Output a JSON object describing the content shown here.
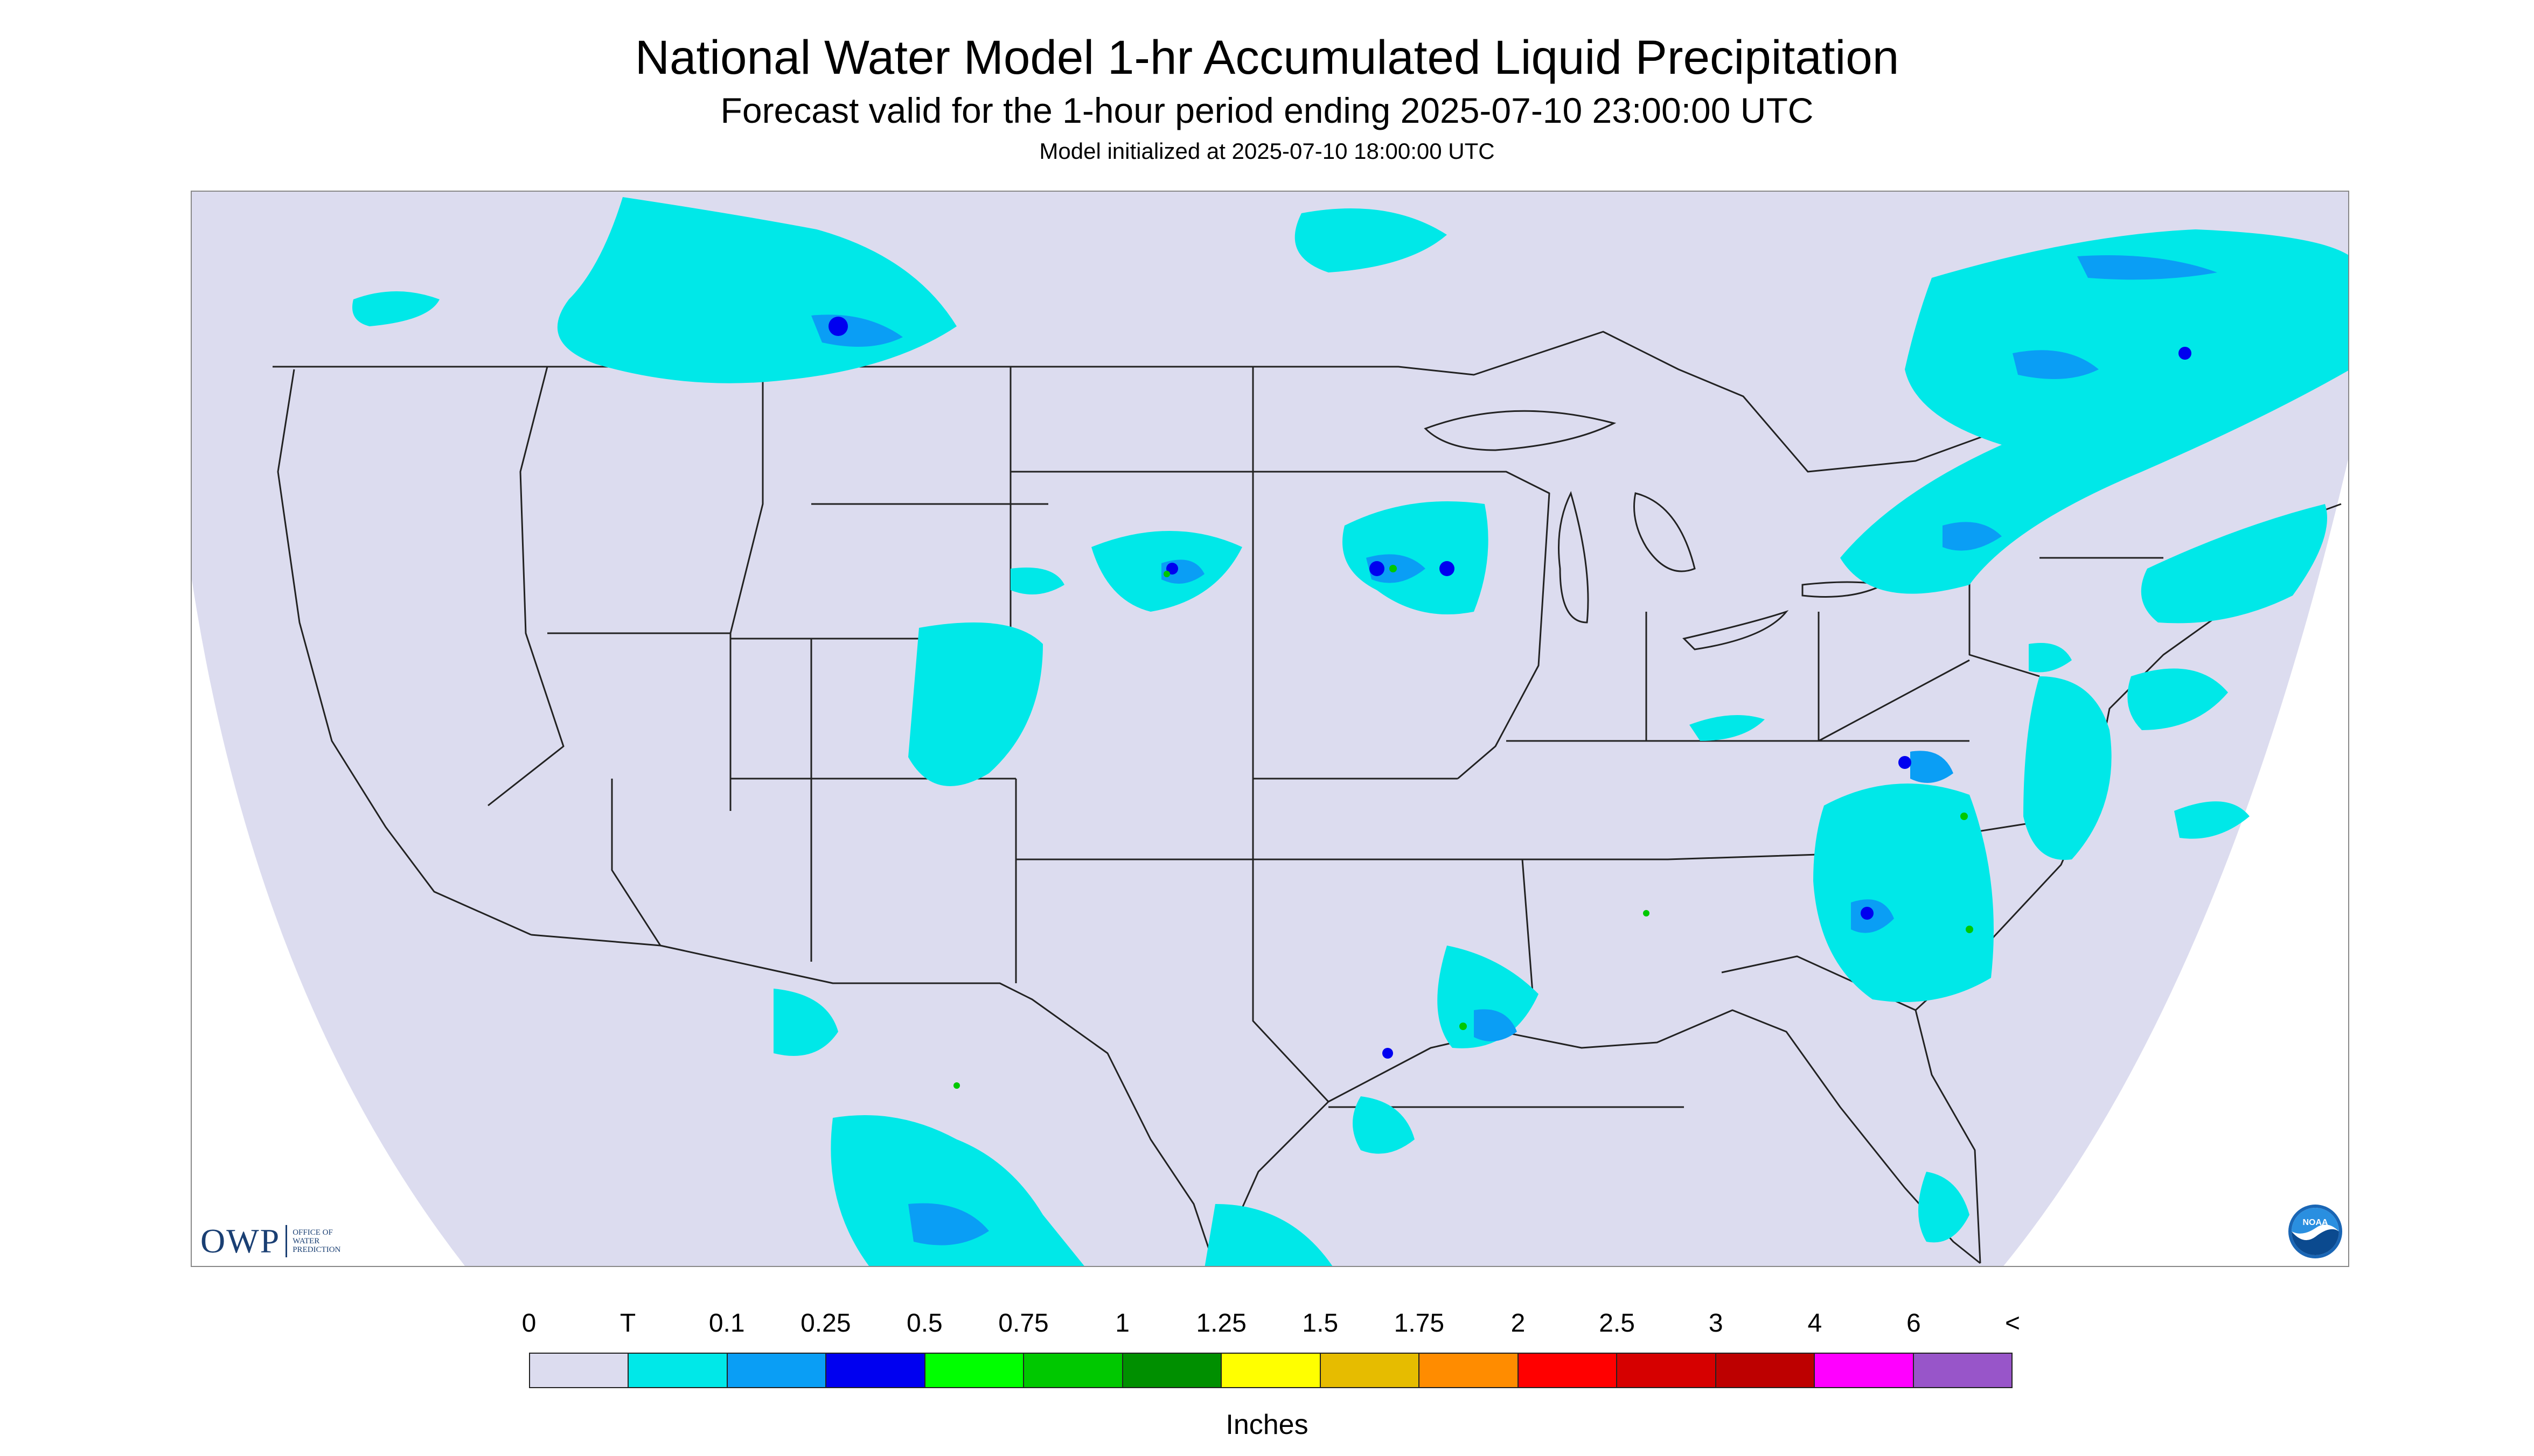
{
  "header": {
    "title": "National Water Model 1-hr Accumulated Liquid Precipitation",
    "subtitle": "Forecast valid for the 1-hour period ending 2025-07-10 23:00:00 UTC",
    "init_line": "Model initialized at 2025-07-10 18:00:00 UTC"
  },
  "logos": {
    "owp_text": "OWP",
    "owp_small": [
      "OFFICE OF",
      "WATER",
      "PREDICTION"
    ],
    "noaa_text": "NOAA"
  },
  "legend": {
    "labels": [
      "0",
      "T",
      "0.1",
      "0.25",
      "0.5",
      "0.75",
      "1",
      "1.25",
      "1.5",
      "1.75",
      "2",
      "2.5",
      "3",
      "4",
      "6",
      "<"
    ],
    "colors": [
      "#dcdcef",
      "#00e8e8",
      "#0a9ef5",
      "#0000f0",
      "#00ff00",
      "#00c800",
      "#008f00",
      "#ffff00",
      "#e6bc00",
      "#ff8c00",
      "#ff0000",
      "#d60000",
      "#bd0000",
      "#ff00ff",
      "#9855c9"
    ],
    "units": "Inches"
  },
  "map": {
    "background_color": "#dcdcef",
    "outside_color": "#ffffff",
    "boundary_color": "#222222",
    "precip_light_color": "#00e8e8",
    "precip_mid_color": "#0a9ef5",
    "precip_heavy_color": "#0000f0",
    "precip_peak_color": "#00c800"
  }
}
